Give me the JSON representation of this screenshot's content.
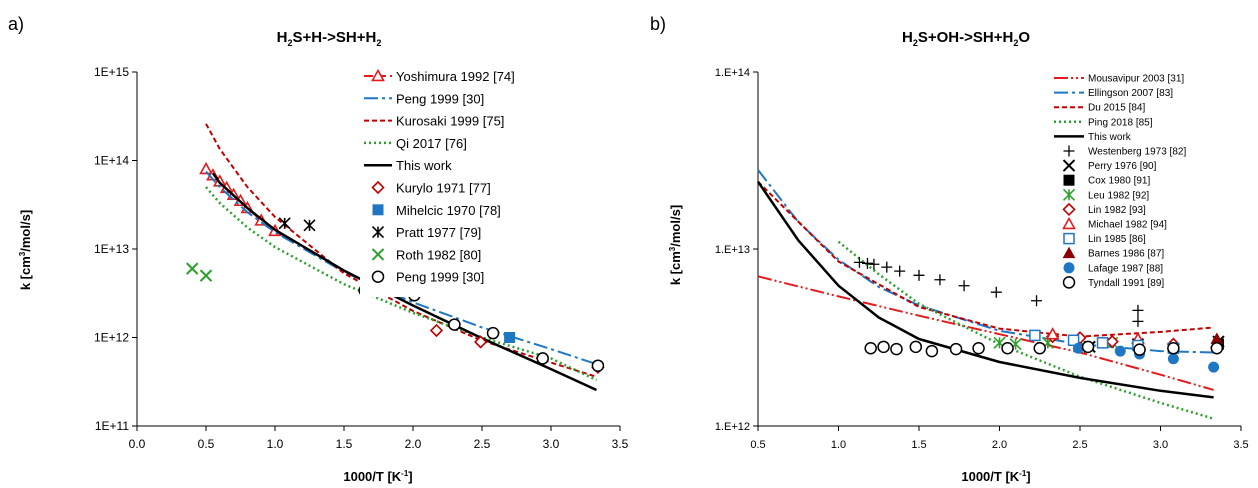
{
  "panels": [
    {
      "label": "a)",
      "chart_data": {
        "type": "line",
        "title_parts": [
          "H",
          "2",
          "S+H->SH+H",
          "2"
        ],
        "xlabel": "1000/T [K",
        "xlabel_sup": "-1",
        "xlabel_end": "]",
        "ylabel": "k [cm",
        "ylabel_sup": "3",
        "ylabel_end": "/mol/s]",
        "xlim": [
          0,
          3.5
        ],
        "xticks": [
          0.0,
          0.5,
          1.0,
          1.5,
          2.0,
          2.5,
          3.0,
          3.5
        ],
        "xtick_labels": [
          "0.0",
          "0.5",
          "1.0",
          "1.5",
          "2.0",
          "2.5",
          "3.0",
          "3.5"
        ],
        "ylim": [
          100000000000.0,
          1000000000000000.0
        ],
        "yscale": "log",
        "yticks": [
          100000000000.0,
          1000000000000.0,
          10000000000000.0,
          100000000000000.0,
          1000000000000000.0
        ],
        "ytick_labels": [
          "1E+11",
          "1E+12",
          "1E+13",
          "1E+14",
          "1E+15"
        ],
        "legend_position": "top-right",
        "series": [
          {
            "name": "Yoshimura 1992 [74]",
            "kind": "line",
            "color": "#e41a1c",
            "dash": "9,4",
            "width": 2,
            "marker": "triangle",
            "marker_color": "#e41a1c",
            "x": [
              0.5,
              0.6,
              0.7,
              0.8,
              0.9,
              1.0
            ],
            "y": [
              85000000000000.0,
              56000000000000.0,
              39000000000000.0,
              29000000000000.0,
              21000000000000.0,
              16000000000000.0
            ],
            "marker_x": [
              0.5,
              0.55,
              0.6,
              0.65,
              0.7,
              0.75,
              0.8,
              0.9,
              1.0
            ],
            "marker_y": [
              80000000000000.0,
              68000000000000.0,
              58000000000000.0,
              49000000000000.0,
              41000000000000.0,
              35000000000000.0,
              29000000000000.0,
              21000000000000.0,
              16000000000000.0
            ]
          },
          {
            "name": "Peng 1999 [30]",
            "kind": "line",
            "color": "#1f77c4",
            "dash": "14,4,3,4",
            "width": 2,
            "x": [
              0.5,
              0.6,
              0.8,
              1.0,
              1.5,
              2.0,
              2.5,
              3.0,
              3.33
            ],
            "y": [
              75000000000000.0,
              50000000000000.0,
              26000000000000.0,
              15500000000000.0,
              5500000000000.0,
              2500000000000.0,
              1300000000000.0,
              740000000000.0,
              500000000000.0
            ]
          },
          {
            "name": "Kurosaki 1999 [75]",
            "kind": "line",
            "color": "#c00000",
            "dash": "5,3",
            "width": 2,
            "x": [
              0.5,
              0.6,
              0.8,
              1.0,
              1.5,
              2.0,
              2.5,
              3.0,
              3.33
            ],
            "y": [
              260000000000000.0,
              135000000000000.0,
              50000000000000.0,
              23000000000000.0,
              5300000000000.0,
              2000000000000.0,
              920000000000.0,
              520000000000.0,
              360000000000.0
            ]
          },
          {
            "name": "Qi 2017 [76]",
            "kind": "line",
            "color": "#2ca02c",
            "dash": "2,3",
            "width": 2.5,
            "x": [
              0.5,
              0.6,
              0.8,
              1.0,
              1.5,
              2.0,
              2.5,
              3.0,
              3.33
            ],
            "y": [
              50000000000000.0,
              33000000000000.0,
              17500000000000.0,
              10500000000000.0,
              4000000000000.0,
              1900000000000.0,
              1000000000000.0,
              580000000000.0,
              330000000000.0
            ]
          },
          {
            "name": "This work",
            "kind": "line",
            "color": "#000000",
            "dash": "",
            "width": 2.5,
            "x": [
              0.55,
              0.6,
              0.8,
              1.0,
              1.5,
              2.0,
              2.5,
              3.0,
              3.33
            ],
            "y": [
              72000000000000.0,
              56000000000000.0,
              29000000000000.0,
              16500000000000.0,
              5700000000000.0,
              2300000000000.0,
              980000000000.0,
              440000000000.0,
              255000000000.0
            ]
          },
          {
            "name": "Kurylo 1971 [77]",
            "kind": "scatter",
            "color": "#c00000",
            "marker": "diamond-open",
            "x": [
              2.17,
              2.49,
              3.34
            ],
            "y": [
              1200000000000.0,
              890000000000.0,
              460000000000.0
            ]
          },
          {
            "name": "Mihelcic 1970 [78]",
            "kind": "scatter",
            "color": "#1f77c4",
            "marker": "square",
            "x": [
              2.7
            ],
            "y": [
              1000000000000.0
            ]
          },
          {
            "name": "Pratt 1977 [79]",
            "kind": "scatter",
            "color": "#000000",
            "marker": "asterisk",
            "x": [
              1.07,
              1.25
            ],
            "y": [
              19500000000000.0,
              18500000000000.0
            ]
          },
          {
            "name": "Roth 1982 [80]",
            "kind": "scatter",
            "color": "#2ca02c",
            "marker": "x",
            "x": [
              0.4,
              0.5
            ],
            "y": [
              6000000000000.0,
              5000000000000.0
            ]
          },
          {
            "name": "Peng 1999 [30]",
            "kind": "scatter",
            "color": "#000000",
            "marker": "circle-open",
            "x": [
              1.65,
              2.01,
              2.3,
              2.58,
              2.94,
              3.34
            ],
            "y": [
              3400000000000.0,
              3000000000000.0,
              1400000000000.0,
              1120000000000.0,
              580000000000.0,
              480000000000.0
            ]
          }
        ]
      }
    },
    {
      "label": "b)",
      "chart_data": {
        "type": "line",
        "title_parts": [
          "H",
          "2",
          "S+OH->SH+H",
          "2",
          "O"
        ],
        "xlabel": "1000/T [K",
        "xlabel_sup": "-1",
        "xlabel_end": "]",
        "ylabel": "k [cm",
        "ylabel_sup": "3",
        "ylabel_end": "/mol/s]",
        "xlim": [
          0.5,
          3.5
        ],
        "xticks": [
          0.5,
          1.0,
          1.5,
          2.0,
          2.5,
          3.0,
          3.5
        ],
        "xtick_labels": [
          "0.5",
          "1.0",
          "1.5",
          "2.0",
          "2.5",
          "3.0",
          "3.5"
        ],
        "ylim": [
          1000000000000.0,
          100000000000000.0
        ],
        "yscale": "log",
        "yticks": [
          1000000000000.0,
          10000000000000.0,
          100000000000000.0
        ],
        "ytick_labels": [
          "1.E+12",
          "1.E+13",
          "1.E+14"
        ],
        "legend_position": "top-right",
        "series": [
          {
            "name": "Mousavipur 2003 [31]",
            "kind": "line",
            "color": "#e41a1c",
            "dash": "14,3,2,3,2,3",
            "width": 2,
            "x": [
              0.5,
              1.0,
              1.5,
              2.0,
              2.5,
              3.0,
              3.33
            ],
            "y": [
              7000000000000.0,
              5400000000000.0,
              4200000000000.0,
              3300000000000.0,
              2600000000000.0,
              1950000000000.0,
              1600000000000.0
            ]
          },
          {
            "name": "Ellingson 2007 [83]",
            "kind": "line",
            "color": "#1f77c4",
            "dash": "14,4,3,4",
            "width": 2,
            "x": [
              0.5,
              0.75,
              1.0,
              1.25,
              1.5,
              2.0,
              2.5,
              3.0,
              3.33
            ],
            "y": [
              28000000000000.0,
              14200000000000.0,
              8700000000000.0,
              6100000000000.0,
              4800000000000.0,
              3450000000000.0,
              2900000000000.0,
              2650000000000.0,
              2600000000000.0
            ]
          },
          {
            "name": "Du 2015 [84]",
            "kind": "line",
            "color": "#c00000",
            "dash": "5,3",
            "width": 2,
            "x": [
              0.5,
              1.0,
              1.5,
              2.0,
              2.5,
              3.0,
              3.33
            ],
            "y": [
              24000000000000.0,
              8500000000000.0,
              4700000000000.0,
              3550000000000.0,
              3200000000000.0,
              3400000000000.0,
              3600000000000.0
            ]
          },
          {
            "name": "Ping 2018 [85]",
            "kind": "line",
            "color": "#2ca02c",
            "dash": "2,3",
            "width": 2.5,
            "x": [
              1.0,
              1.25,
              1.5,
              2.0,
              2.5,
              3.0,
              3.33
            ],
            "y": [
              11000000000000.0,
              7200000000000.0,
              4900000000000.0,
              2900000000000.0,
              1900000000000.0,
              1350000000000.0,
              1100000000000.0
            ]
          },
          {
            "name": "This work",
            "kind": "line",
            "color": "#000000",
            "dash": "",
            "width": 2.5,
            "x": [
              0.5,
              0.75,
              1.0,
              1.25,
              1.5,
              2.0,
              2.5,
              3.0,
              3.33
            ],
            "y": [
              24000000000000.0,
              11200000000000.0,
              6200000000000.0,
              4100000000000.0,
              3100000000000.0,
              2300000000000.0,
              1870000000000.0,
              1580000000000.0,
              1450000000000.0
            ]
          },
          {
            "name": "Westenberg 1973 [82]",
            "kind": "scatter",
            "color": "#000000",
            "marker": "plus",
            "x": [
              1.13,
              1.18,
              1.22,
              1.3,
              1.38,
              1.5,
              1.63,
              1.78,
              1.98,
              2.23,
              2.86,
              2.86
            ],
            "y": [
              8400000000000.0,
              8300000000000.0,
              8200000000000.0,
              7900000000000.0,
              7500000000000.0,
              7100000000000.0,
              6700000000000.0,
              6200000000000.0,
              5700000000000.0,
              5100000000000.0,
              4500000000000.0,
              3900000000000.0
            ]
          },
          {
            "name": "Perry 1976 [90]",
            "kind": "scatter",
            "color": "#000000",
            "marker": "x",
            "x": [
              2.56,
              2.86,
              3.36
            ],
            "y": [
              2800000000000.0,
              2900000000000.0,
              3000000000000.0
            ]
          },
          {
            "name": "Cox 1980 [91]",
            "kind": "scatter",
            "color": "#000000",
            "marker": "square",
            "x": [
              3.36
            ],
            "y": [
              2900000000000.0
            ]
          },
          {
            "name": "Leu 1982 [92]",
            "kind": "scatter",
            "color": "#2ca02c",
            "marker": "asterisk",
            "x": [
              2.0,
              2.1,
              2.3,
              2.5,
              2.7
            ],
            "y": [
              2950000000000.0,
              2900000000000.0,
              2950000000000.0,
              3000000000000.0,
              2950000000000.0
            ]
          },
          {
            "name": "Lin 1982 [93]",
            "kind": "scatter",
            "color": "#c00000",
            "marker": "diamond-open",
            "x": [
              2.33,
              2.5,
              2.7,
              2.86,
              3.08
            ],
            "y": [
              3200000000000.0,
              3150000000000.0,
              3000000000000.0,
              2950000000000.0,
              2900000000000.0
            ]
          },
          {
            "name": "Michael 1982 [94]",
            "kind": "scatter",
            "color": "#e41a1c",
            "marker": "triangle-open",
            "x": [
              2.33,
              2.86,
              3.35
            ],
            "y": [
              3300000000000.0,
              3100000000000.0,
              2950000000000.0
            ]
          },
          {
            "name": "Lin 1985 [86]",
            "kind": "scatter",
            "color": "#1f77c4",
            "marker": "square-open",
            "x": [
              2.22,
              2.46,
              2.64,
              2.86,
              3.08
            ],
            "y": [
              3250000000000.0,
              3050000000000.0,
              2950000000000.0,
              2850000000000.0,
              2750000000000.0
            ]
          },
          {
            "name": "Barnes 1986 [87]",
            "kind": "scatter",
            "color": "#8b0000",
            "marker": "triangle",
            "x": [
              3.35
            ],
            "y": [
              3100000000000.0
            ]
          },
          {
            "name": "Lafage 1987 [88]",
            "kind": "scatter",
            "color": "#1f77c4",
            "marker": "circle",
            "x": [
              2.49,
              2.75,
              2.87,
              3.08,
              3.33
            ],
            "y": [
              2750000000000.0,
              2650000000000.0,
              2550000000000.0,
              2400000000000.0,
              2150000000000.0
            ]
          },
          {
            "name": "Tyndall 1991 [89]",
            "kind": "scatter",
            "color": "#000000",
            "marker": "circle-open",
            "x": [
              1.2,
              1.28,
              1.36,
              1.48,
              1.58,
              1.73,
              1.87,
              2.05,
              2.25,
              2.55,
              2.87,
              3.08,
              3.35
            ],
            "y": [
              2750000000000.0,
              2800000000000.0,
              2720000000000.0,
              2800000000000.0,
              2650000000000.0,
              2720000000000.0,
              2750000000000.0,
              2750000000000.0,
              2750000000000.0,
              2800000000000.0,
              2700000000000.0,
              2750000000000.0,
              2750000000000.0
            ]
          }
        ]
      }
    }
  ]
}
